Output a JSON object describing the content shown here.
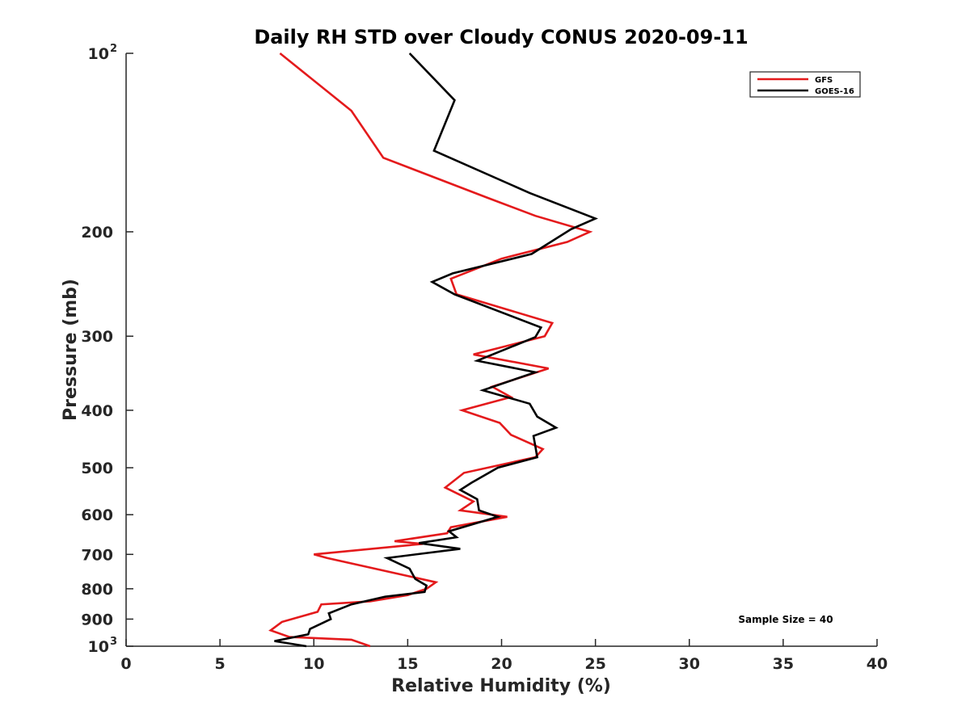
{
  "chart_data": {
    "type": "line",
    "title": "Daily RH STD over Cloudy CONUS 2020-09-11",
    "xlabel": "Relative Humidity (%)",
    "ylabel": "Pressure (mb)",
    "xlim": [
      0,
      40
    ],
    "ylim": [
      100,
      1000
    ],
    "y_scale": "log",
    "y_reversed": true,
    "x_ticks": [
      0,
      5,
      10,
      15,
      20,
      25,
      30,
      35,
      40
    ],
    "y_ticks": [
      {
        "value": 100,
        "base": "10",
        "exp": "2"
      },
      {
        "value": 200,
        "label": "200"
      },
      {
        "value": 300,
        "label": "300"
      },
      {
        "value": 400,
        "label": "400"
      },
      {
        "value": 500,
        "label": "500"
      },
      {
        "value": 600,
        "label": "600"
      },
      {
        "value": 700,
        "label": "700"
      },
      {
        "value": 800,
        "label": "800"
      },
      {
        "value": 900,
        "label": "900"
      },
      {
        "value": 1000,
        "base": "10",
        "exp": "3"
      }
    ],
    "legend_position": "top-right",
    "grid": false,
    "annotation": "Sample Size = 40",
    "series": [
      {
        "name": "GFS",
        "color": "#e41a1c",
        "points": [
          [
            8.2,
            100
          ],
          [
            12.0,
            125
          ],
          [
            13.7,
            150
          ],
          [
            19.2,
            175
          ],
          [
            21.8,
            188
          ],
          [
            24.7,
            200
          ],
          [
            23.5,
            208
          ],
          [
            20.0,
            222
          ],
          [
            17.3,
            240
          ],
          [
            17.6,
            255
          ],
          [
            22.7,
            285
          ],
          [
            22.3,
            300
          ],
          [
            18.5,
            322
          ],
          [
            22.5,
            340
          ],
          [
            19.5,
            365
          ],
          [
            20.5,
            380
          ],
          [
            17.9,
            400
          ],
          [
            19.9,
            420
          ],
          [
            20.5,
            440
          ],
          [
            22.2,
            465
          ],
          [
            21.8,
            480
          ],
          [
            18.0,
            510
          ],
          [
            17.0,
            540
          ],
          [
            18.5,
            570
          ],
          [
            17.8,
            590
          ],
          [
            20.3,
            605
          ],
          [
            17.3,
            630
          ],
          [
            17.1,
            645
          ],
          [
            14.3,
            665
          ],
          [
            15.8,
            672
          ],
          [
            10.0,
            700
          ],
          [
            10.7,
            710
          ],
          [
            16.5,
            780
          ],
          [
            16.0,
            800
          ],
          [
            15.0,
            820
          ],
          [
            13.0,
            840
          ],
          [
            10.4,
            850
          ],
          [
            10.2,
            875
          ],
          [
            8.3,
            910
          ],
          [
            7.7,
            940
          ],
          [
            8.7,
            965
          ],
          [
            12.0,
            975
          ],
          [
            13.0,
            1000
          ]
        ]
      },
      {
        "name": "GOES-16",
        "color": "#000000",
        "points": [
          [
            15.1,
            100
          ],
          [
            17.5,
            120
          ],
          [
            16.4,
            146
          ],
          [
            21.5,
            172
          ],
          [
            25.0,
            190
          ],
          [
            23.7,
            198
          ],
          [
            21.6,
            218
          ],
          [
            17.4,
            235
          ],
          [
            16.3,
            243
          ],
          [
            17.5,
            255
          ],
          [
            22.1,
            290
          ],
          [
            21.8,
            301
          ],
          [
            18.7,
            330
          ],
          [
            21.8,
            345
          ],
          [
            19.0,
            370
          ],
          [
            21.5,
            390
          ],
          [
            21.9,
            410
          ],
          [
            22.9,
            428
          ],
          [
            21.7,
            442
          ],
          [
            21.8,
            460
          ],
          [
            21.9,
            480
          ],
          [
            19.8,
            500
          ],
          [
            18.4,
            530
          ],
          [
            17.8,
            545
          ],
          [
            18.7,
            565
          ],
          [
            18.8,
            590
          ],
          [
            19.8,
            605
          ],
          [
            17.2,
            640
          ],
          [
            17.6,
            655
          ],
          [
            15.6,
            670
          ],
          [
            17.8,
            685
          ],
          [
            13.9,
            710
          ],
          [
            15.1,
            740
          ],
          [
            15.4,
            770
          ],
          [
            16.0,
            790
          ],
          [
            15.9,
            810
          ],
          [
            13.8,
            825
          ],
          [
            12.0,
            850
          ],
          [
            10.8,
            880
          ],
          [
            10.9,
            900
          ],
          [
            9.8,
            935
          ],
          [
            9.7,
            955
          ],
          [
            7.9,
            980
          ],
          [
            9.6,
            1000
          ]
        ]
      }
    ]
  }
}
